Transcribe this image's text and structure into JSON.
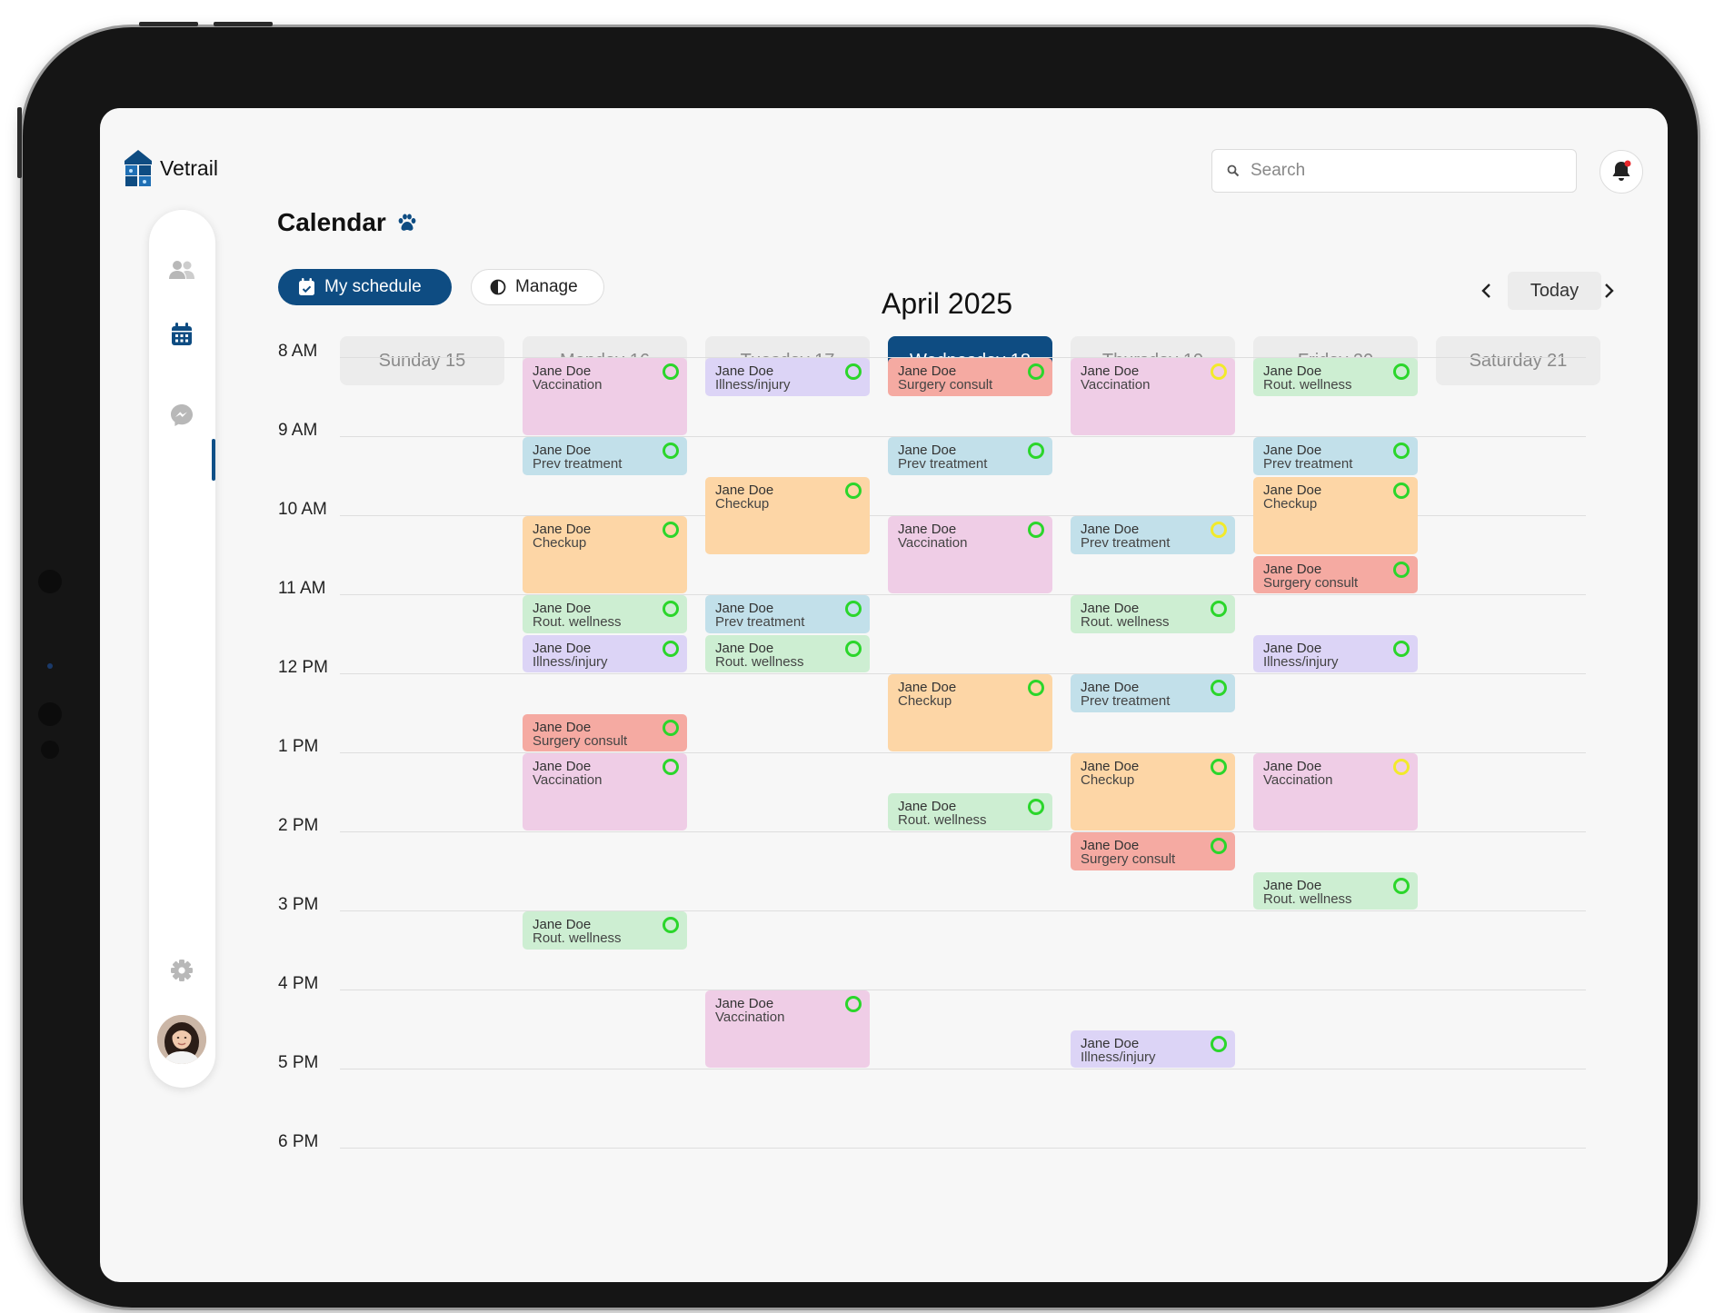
{
  "app": {
    "name": "Vetrail"
  },
  "page": {
    "title": "Calendar",
    "month": "April 2025"
  },
  "search": {
    "placeholder": "Search"
  },
  "buttons": {
    "my_schedule": "My schedule",
    "manage": "Manage",
    "today": "Today"
  },
  "sidebar": {
    "items": [
      "clients-icon",
      "calendar-icon",
      "messenger-icon",
      "settings-icon"
    ],
    "active": "calendar-icon"
  },
  "colors": {
    "primary": "#0e4c82",
    "status_done": "#2bd62b",
    "status_pending": "#f2ea2b"
  },
  "types": {
    "Vaccination": "#efcde6",
    "Illness/injury": "#dcd4f6",
    "Surgery consult": "#f5aaa2",
    "Prev treatment": "#c2e0ea",
    "Checkup": "#fdd6a6",
    "Rout. wellness": "#cdeed2"
  },
  "days": [
    {
      "label": "Sunday 15",
      "active": false
    },
    {
      "label": "Monday 16",
      "active": false
    },
    {
      "label": "Tuesday 17",
      "active": false
    },
    {
      "label": "Wednesday 18",
      "active": true
    },
    {
      "label": "Thursday 19",
      "active": false
    },
    {
      "label": "Friday 20",
      "active": false
    },
    {
      "label": "Saturday 21",
      "active": false
    }
  ],
  "hours": [
    "8 AM",
    "9 AM",
    "10 AM",
    "11 AM",
    "12 PM",
    "1 PM",
    "2 PM",
    "3 PM",
    "4 PM",
    "5 PM",
    "6 PM"
  ],
  "events": [
    {
      "day": 1,
      "start": 8.0,
      "end": 9.0,
      "name": "Jane Doe",
      "type": "Vaccination",
      "status": "done"
    },
    {
      "day": 1,
      "start": 9.0,
      "end": 9.5,
      "name": "Jane Doe",
      "type": "Prev treatment",
      "status": "done"
    },
    {
      "day": 1,
      "start": 10.0,
      "end": 11.0,
      "name": "Jane Doe",
      "type": "Checkup",
      "status": "done"
    },
    {
      "day": 1,
      "start": 11.0,
      "end": 11.5,
      "name": "Jane Doe",
      "type": "Rout. wellness",
      "status": "done"
    },
    {
      "day": 1,
      "start": 11.5,
      "end": 12.0,
      "name": "Jane Doe",
      "type": "Illness/injury",
      "status": "done"
    },
    {
      "day": 1,
      "start": 12.5,
      "end": 13.0,
      "name": "Jane Doe",
      "type": "Surgery consult",
      "status": "done"
    },
    {
      "day": 1,
      "start": 13.0,
      "end": 14.0,
      "name": "Jane Doe",
      "type": "Vaccination",
      "status": "done"
    },
    {
      "day": 1,
      "start": 15.0,
      "end": 15.5,
      "name": "Jane Doe",
      "type": "Rout. wellness",
      "status": "done"
    },
    {
      "day": 2,
      "start": 8.0,
      "end": 8.5,
      "name": "Jane Doe",
      "type": "Illness/injury",
      "status": "done"
    },
    {
      "day": 2,
      "start": 9.5,
      "end": 10.5,
      "name": "Jane Doe",
      "type": "Checkup",
      "status": "done"
    },
    {
      "day": 2,
      "start": 11.0,
      "end": 11.5,
      "name": "Jane Doe",
      "type": "Prev treatment",
      "status": "done"
    },
    {
      "day": 2,
      "start": 11.5,
      "end": 12.0,
      "name": "Jane Doe",
      "type": "Rout. wellness",
      "status": "done"
    },
    {
      "day": 2,
      "start": 16.0,
      "end": 17.0,
      "name": "Jane Doe",
      "type": "Vaccination",
      "status": "done"
    },
    {
      "day": 3,
      "start": 8.0,
      "end": 8.5,
      "name": "Jane Doe",
      "type": "Surgery consult",
      "status": "done"
    },
    {
      "day": 3,
      "start": 9.0,
      "end": 9.5,
      "name": "Jane Doe",
      "type": "Prev treatment",
      "status": "done"
    },
    {
      "day": 3,
      "start": 10.0,
      "end": 11.0,
      "name": "Jane Doe",
      "type": "Vaccination",
      "status": "done"
    },
    {
      "day": 3,
      "start": 12.0,
      "end": 13.0,
      "name": "Jane Doe",
      "type": "Checkup",
      "status": "done"
    },
    {
      "day": 3,
      "start": 13.5,
      "end": 14.0,
      "name": "Jane Doe",
      "type": "Rout. wellness",
      "status": "done"
    },
    {
      "day": 4,
      "start": 8.0,
      "end": 9.0,
      "name": "Jane Doe",
      "type": "Vaccination",
      "status": "pending"
    },
    {
      "day": 4,
      "start": 10.0,
      "end": 10.5,
      "name": "Jane Doe",
      "type": "Prev treatment",
      "status": "pending"
    },
    {
      "day": 4,
      "start": 11.0,
      "end": 11.5,
      "name": "Jane Doe",
      "type": "Rout. wellness",
      "status": "done"
    },
    {
      "day": 4,
      "start": 12.0,
      "end": 12.5,
      "name": "Jane Doe",
      "type": "Prev treatment",
      "status": "done"
    },
    {
      "day": 4,
      "start": 13.0,
      "end": 14.0,
      "name": "Jane Doe",
      "type": "Checkup",
      "status": "done"
    },
    {
      "day": 4,
      "start": 14.0,
      "end": 14.5,
      "name": "Jane Doe",
      "type": "Surgery consult",
      "status": "done"
    },
    {
      "day": 4,
      "start": 16.5,
      "end": 17.0,
      "name": "Jane Doe",
      "type": "Illness/injury",
      "status": "done"
    },
    {
      "day": 5,
      "start": 8.0,
      "end": 8.5,
      "name": "Jane Doe",
      "type": "Rout. wellness",
      "status": "done"
    },
    {
      "day": 5,
      "start": 9.0,
      "end": 9.5,
      "name": "Jane Doe",
      "type": "Prev treatment",
      "status": "done"
    },
    {
      "day": 5,
      "start": 9.5,
      "end": 10.5,
      "name": "Jane Doe",
      "type": "Checkup",
      "status": "done"
    },
    {
      "day": 5,
      "start": 10.5,
      "end": 11.0,
      "name": "Jane Doe",
      "type": "Surgery consult",
      "status": "done"
    },
    {
      "day": 5,
      "start": 11.5,
      "end": 12.0,
      "name": "Jane Doe",
      "type": "Illness/injury",
      "status": "done"
    },
    {
      "day": 5,
      "start": 13.0,
      "end": 14.0,
      "name": "Jane Doe",
      "type": "Vaccination",
      "status": "pending"
    },
    {
      "day": 5,
      "start": 14.5,
      "end": 15.0,
      "name": "Jane Doe",
      "type": "Rout. wellness",
      "status": "done"
    }
  ]
}
